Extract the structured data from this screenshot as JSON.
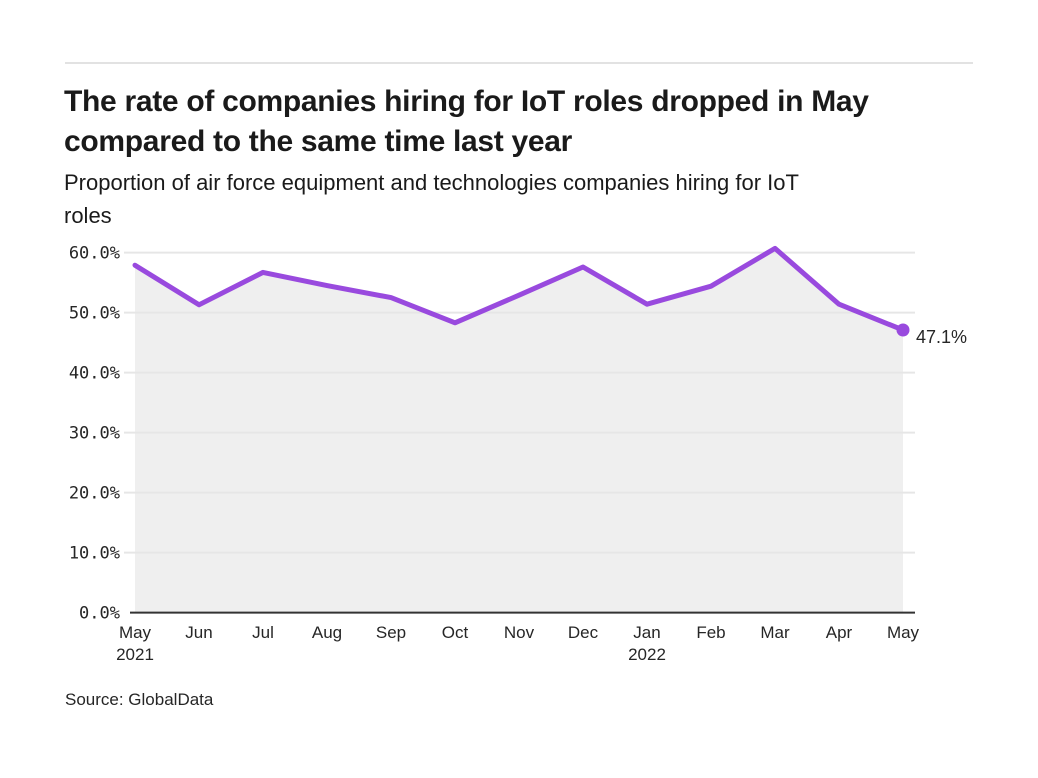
{
  "header": {
    "title_lines": [
      "The rate of companies hiring for IoT roles dropped in May",
      "compared to the same time last year"
    ],
    "subtitle_lines": [
      "Proportion of air force equipment and technologies companies hiring for IoT",
      "roles"
    ]
  },
  "source": {
    "label": "Source: GlobalData"
  },
  "chart_data": {
    "type": "area",
    "title": "The rate of companies hiring for IoT roles dropped in May compared to the same time last year",
    "subtitle": "Proportion of air force equipment and technologies companies hiring for IoT roles",
    "x": [
      "May 2021",
      "Jun 2021",
      "Jul 2021",
      "Aug 2021",
      "Sep 2021",
      "Oct 2021",
      "Nov 2021",
      "Dec 2021",
      "Jan 2022",
      "Feb 2022",
      "Mar 2022",
      "Apr 2022",
      "May 2022"
    ],
    "values": [
      57.9,
      51.3,
      56.7,
      54.5,
      52.5,
      48.3,
      52.9,
      57.6,
      51.4,
      54.4,
      60.7,
      51.4,
      47.1
    ],
    "end_label": "47.1%",
    "yticks": [
      "0.0%",
      "10.0%",
      "20.0%",
      "30.0%",
      "40.0%",
      "50.0%",
      "60.0%"
    ],
    "ytick_values": [
      0,
      10,
      20,
      30,
      40,
      50,
      60
    ],
    "xticks": [
      {
        "month": "May",
        "year": "2021"
      },
      {
        "month": "Jun"
      },
      {
        "month": "Jul"
      },
      {
        "month": "Aug"
      },
      {
        "month": "Sep"
      },
      {
        "month": "Oct"
      },
      {
        "month": "Nov"
      },
      {
        "month": "Dec"
      },
      {
        "month": "Jan",
        "year": "2022"
      },
      {
        "month": "Feb"
      },
      {
        "month": "Mar"
      },
      {
        "month": "Apr"
      },
      {
        "month": "May"
      }
    ],
    "xlabel": "",
    "ylabel": "",
    "ylim": [
      0,
      62
    ],
    "grid": true,
    "legend": false,
    "line_color": "#994ade",
    "marker_color": "#994ade",
    "area_fill": "#efefef",
    "grid_color": "#e6e6e6",
    "axis_color": "#333333",
    "tick_color": "#262626",
    "end_label_color": "#262626"
  }
}
